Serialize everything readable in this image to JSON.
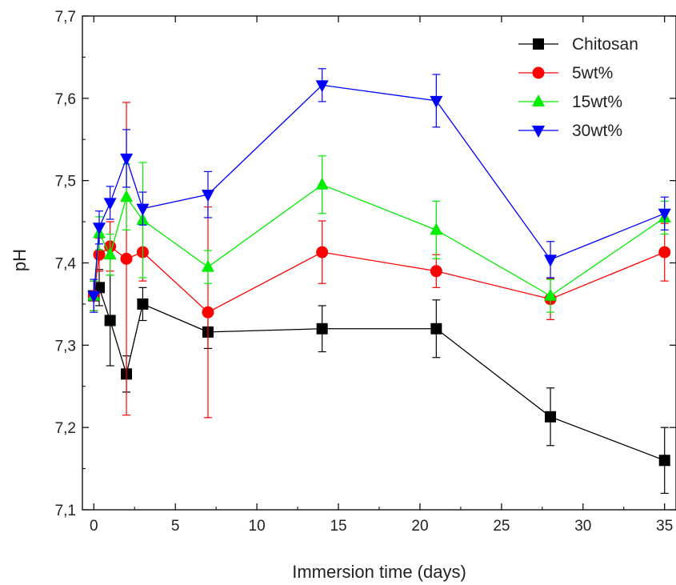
{
  "chart_data": {
    "type": "line",
    "xlabel": "Immersion time (days)",
    "ylabel": "pH",
    "xlim": [
      -0.7,
      35.7
    ],
    "ylim": [
      7.1,
      7.7
    ],
    "x_ticks": [
      0,
      5,
      10,
      15,
      20,
      25,
      30,
      35
    ],
    "x_tick_labels": [
      "0",
      "5",
      "10",
      "15",
      "20",
      "25",
      "30",
      "35"
    ],
    "y_ticks": [
      7.1,
      7.2,
      7.3,
      7.4,
      7.5,
      7.6,
      7.7
    ],
    "y_tick_labels": [
      "7,1",
      "7,2",
      "7,3",
      "7,4",
      "7,5",
      "7,6",
      "7,7"
    ],
    "grid": false,
    "legend_position": "top-right",
    "series": [
      {
        "name": "Chitosan",
        "color": "#000000",
        "marker": "square",
        "x": [
          0,
          0.33,
          1,
          2,
          3,
          7,
          14,
          21,
          28,
          35
        ],
        "y": [
          7.36,
          7.37,
          7.33,
          7.265,
          7.35,
          7.316,
          7.32,
          7.32,
          7.213,
          7.16
        ],
        "err": [
          0.018,
          0.022,
          0.055,
          0.022,
          0.02,
          0.02,
          0.028,
          0.035,
          0.035,
          0.04
        ]
      },
      {
        "name": "5wt%",
        "color": "#ff0000",
        "marker": "circle",
        "x": [
          0,
          0.33,
          1,
          2,
          3,
          7,
          14,
          21,
          28,
          35
        ],
        "y": [
          7.36,
          7.41,
          7.42,
          7.405,
          7.413,
          7.34,
          7.413,
          7.39,
          7.356,
          7.413
        ],
        "err": [
          0.018,
          0.02,
          0.03,
          0.19,
          0.035,
          0.128,
          0.038,
          0.02,
          0.025,
          0.035
        ]
      },
      {
        "name": "15wt%",
        "color": "#00ee00",
        "marker": "triangle-up",
        "x": [
          0,
          0.33,
          1,
          2,
          3,
          7,
          14,
          21,
          28,
          35
        ],
        "y": [
          7.36,
          7.436,
          7.41,
          7.48,
          7.452,
          7.395,
          7.495,
          7.44,
          7.36,
          7.455
        ],
        "err": [
          0.018,
          0.02,
          0.025,
          0.04,
          0.07,
          0.02,
          0.035,
          0.035,
          0.02,
          0.02
        ]
      },
      {
        "name": "30wt%",
        "color": "#0000ff",
        "marker": "triangle-down",
        "x": [
          0,
          0.33,
          1,
          2,
          3,
          7,
          14,
          21,
          28,
          35
        ],
        "y": [
          7.36,
          7.443,
          7.473,
          7.527,
          7.466,
          7.483,
          7.616,
          7.597,
          7.404,
          7.46
        ],
        "err": [
          0.02,
          0.02,
          0.02,
          0.035,
          0.02,
          0.028,
          0.02,
          0.032,
          0.022,
          0.02
        ]
      }
    ]
  }
}
